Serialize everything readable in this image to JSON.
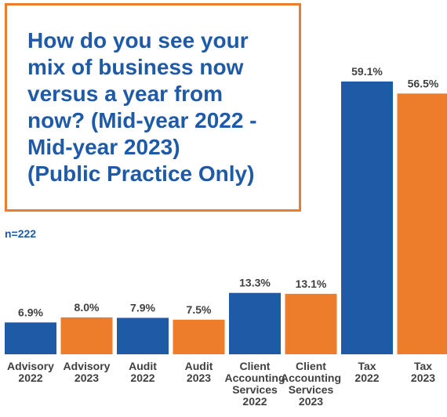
{
  "colors": {
    "blue": "#1f5aa6",
    "orange": "#ee7d2b",
    "border": "#ee7d2b",
    "title": "#1f5aa6"
  },
  "title_lines": [
    "How do you see your",
    "mix of business now",
    "versus a year from",
    "now? (Mid-year 2022 -",
    "Mid-year 2023)",
    "(Public Practice Only)"
  ],
  "n_label": "n=222",
  "chart_data": {
    "type": "bar",
    "title": "How do you see your mix of business now versus a year from now? (Mid-year 2022 - Mid-year 2023) (Public Practice Only)",
    "categories": [
      [
        "Advisory",
        "2022"
      ],
      [
        "Advisory",
        "2023"
      ],
      [
        "Audit",
        "2022"
      ],
      [
        "Audit",
        "2023"
      ],
      [
        "Client",
        "Accounting",
        "Services",
        "2022"
      ],
      [
        "Client",
        "Accounting",
        "Services",
        "2023"
      ],
      [
        "Tax",
        "2022"
      ],
      [
        "Tax",
        "2023"
      ]
    ],
    "values": [
      6.9,
      8.0,
      7.9,
      7.5,
      13.3,
      13.1,
      59.1,
      56.5
    ],
    "value_labels": [
      "6.9%",
      "8.0%",
      "7.9%",
      "7.5%",
      "13.3%",
      "13.1%",
      "59.1%",
      "56.5%"
    ],
    "bar_colors": [
      "blue",
      "orange",
      "blue",
      "orange",
      "blue",
      "orange",
      "blue",
      "orange"
    ],
    "ylim": [
      0,
      59.1
    ],
    "grid": false
  }
}
